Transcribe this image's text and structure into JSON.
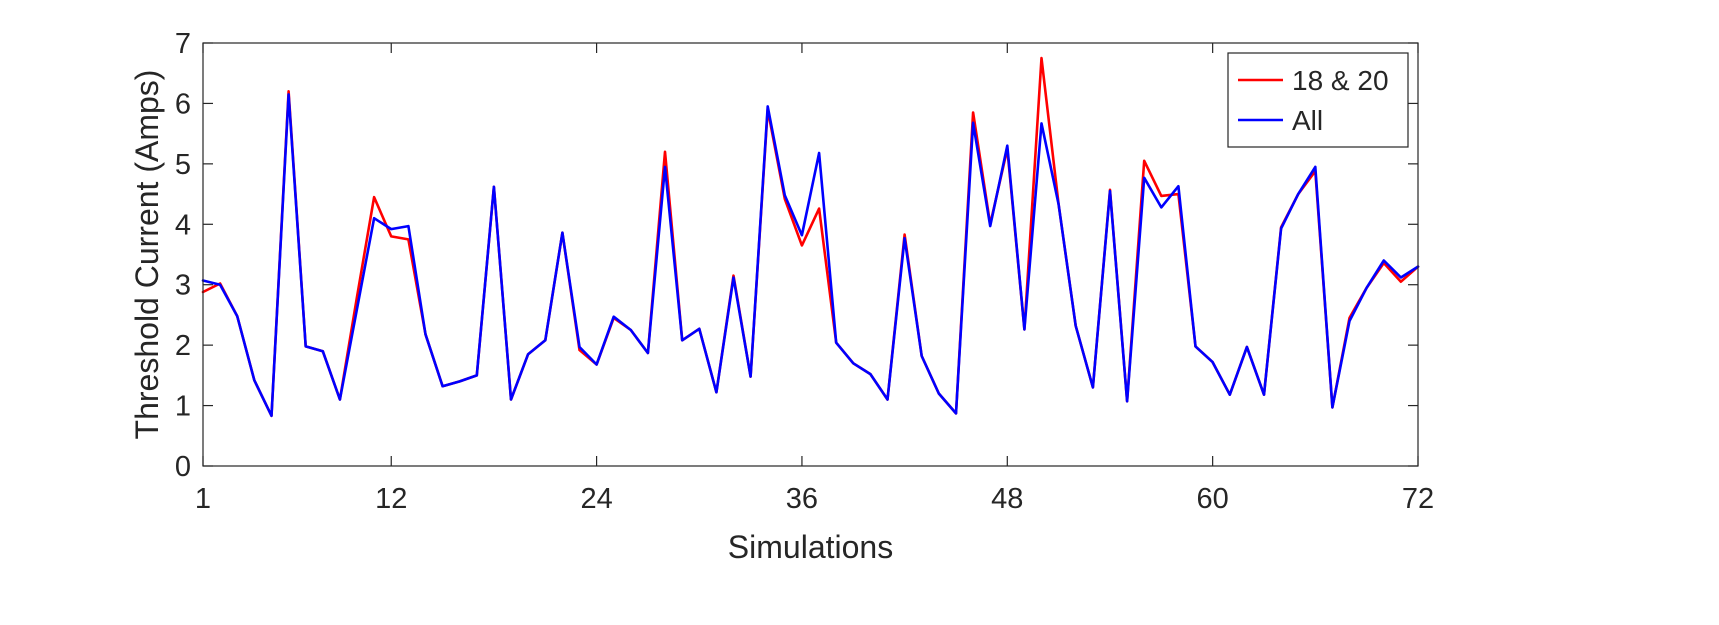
{
  "chart_data": {
    "type": "line",
    "title": "",
    "xlabel": "Simulations",
    "ylabel": "Threshold Current (Amps)",
    "xlim": [
      1,
      72
    ],
    "ylim": [
      0,
      7
    ],
    "xticks": [
      1,
      12,
      24,
      36,
      48,
      60,
      72
    ],
    "yticks": [
      0,
      1,
      2,
      3,
      4,
      5,
      6,
      7
    ],
    "grid": false,
    "legend_position": "top-right",
    "x": [
      1,
      2,
      3,
      4,
      5,
      6,
      7,
      8,
      9,
      10,
      11,
      12,
      13,
      14,
      15,
      16,
      17,
      18,
      19,
      20,
      21,
      22,
      23,
      24,
      25,
      26,
      27,
      28,
      29,
      30,
      31,
      32,
      33,
      34,
      35,
      36,
      37,
      38,
      39,
      40,
      41,
      42,
      43,
      44,
      45,
      46,
      47,
      48,
      49,
      50,
      51,
      52,
      53,
      54,
      55,
      56,
      57,
      58,
      59,
      60,
      61,
      62,
      63,
      64,
      65,
      66,
      67,
      68,
      69,
      70,
      71,
      72
    ],
    "series": [
      {
        "name": "18 & 20",
        "color": "#ff0000",
        "values": [
          2.88,
          3.02,
          2.48,
          1.42,
          0.83,
          6.2,
          1.98,
          1.9,
          1.1,
          2.8,
          4.45,
          3.8,
          3.75,
          2.18,
          1.32,
          1.4,
          1.5,
          4.62,
          1.1,
          1.85,
          2.08,
          3.86,
          1.92,
          1.68,
          2.45,
          2.25,
          1.87,
          5.2,
          2.08,
          2.27,
          1.22,
          3.15,
          1.48,
          5.9,
          4.42,
          3.65,
          4.26,
          2.04,
          1.7,
          1.52,
          1.1,
          3.83,
          1.82,
          1.2,
          0.87,
          5.85,
          4.0,
          5.25,
          2.26,
          6.75,
          4.33,
          2.32,
          1.3,
          4.57,
          1.07,
          5.05,
          4.47,
          4.5,
          1.98,
          1.72,
          1.18,
          1.97,
          1.18,
          3.95,
          4.5,
          4.88,
          0.97,
          2.45,
          2.95,
          3.36,
          3.05,
          3.3
        ]
      },
      {
        "name": "All",
        "color": "#0000ff",
        "values": [
          3.07,
          3.0,
          2.48,
          1.42,
          0.83,
          6.15,
          1.98,
          1.9,
          1.1,
          2.6,
          4.1,
          3.92,
          3.97,
          2.18,
          1.32,
          1.4,
          1.5,
          4.62,
          1.1,
          1.85,
          2.08,
          3.86,
          1.97,
          1.68,
          2.47,
          2.25,
          1.87,
          4.95,
          2.08,
          2.27,
          1.22,
          3.12,
          1.48,
          5.95,
          4.48,
          3.82,
          5.18,
          2.04,
          1.7,
          1.52,
          1.1,
          3.77,
          1.82,
          1.2,
          0.87,
          5.68,
          3.97,
          5.3,
          2.26,
          5.67,
          4.33,
          2.32,
          1.3,
          4.55,
          1.07,
          4.77,
          4.28,
          4.63,
          1.98,
          1.72,
          1.18,
          1.97,
          1.18,
          3.93,
          4.5,
          4.95,
          0.97,
          2.4,
          2.95,
          3.4,
          3.12,
          3.3
        ]
      }
    ]
  }
}
